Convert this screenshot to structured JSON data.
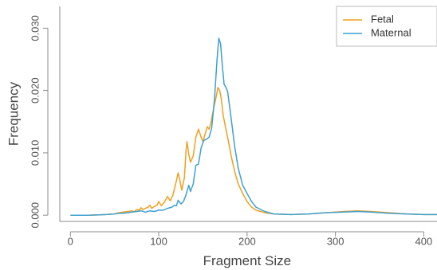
{
  "chart_data": {
    "type": "line",
    "title": "",
    "xlabel": "Fragment Size",
    "ylabel": "Frequency",
    "xlim": [
      -12,
      415
    ],
    "ylim": [
      -0.001,
      0.0335
    ],
    "xticks": [
      0,
      100,
      200,
      300,
      400
    ],
    "yticks": [
      0.0,
      0.01,
      0.02,
      0.03
    ],
    "xtick_labels": [
      "0",
      "100",
      "200",
      "300",
      "400"
    ],
    "ytick_labels": [
      "0.000",
      "0.010",
      "0.020",
      "0.030"
    ],
    "grid": false,
    "legend_position": "top-right",
    "series": [
      {
        "name": "Fetal",
        "color": "#f0a020",
        "points": [
          [
            0,
            0.0
          ],
          [
            20,
            0.0
          ],
          [
            40,
            0.0001
          ],
          [
            50,
            0.0002
          ],
          [
            55,
            0.0004
          ],
          [
            60,
            0.0005
          ],
          [
            65,
            0.0006
          ],
          [
            70,
            0.0007
          ],
          [
            72,
            0.0005
          ],
          [
            75,
            0.0009
          ],
          [
            78,
            0.0008
          ],
          [
            80,
            0.0012
          ],
          [
            82,
            0.0009
          ],
          [
            85,
            0.0011
          ],
          [
            88,
            0.0013
          ],
          [
            90,
            0.0016
          ],
          [
            92,
            0.0011
          ],
          [
            95,
            0.0014
          ],
          [
            98,
            0.0016
          ],
          [
            100,
            0.0022
          ],
          [
            103,
            0.0015
          ],
          [
            106,
            0.002
          ],
          [
            110,
            0.003
          ],
          [
            113,
            0.0023
          ],
          [
            116,
            0.0032
          ],
          [
            120,
            0.0055
          ],
          [
            122,
            0.0068
          ],
          [
            124,
            0.0055
          ],
          [
            126,
            0.004
          ],
          [
            129,
            0.006
          ],
          [
            131,
            0.0105
          ],
          [
            132,
            0.0118
          ],
          [
            134,
            0.0098
          ],
          [
            136,
            0.0085
          ],
          [
            139,
            0.0095
          ],
          [
            142,
            0.0125
          ],
          [
            145,
            0.0138
          ],
          [
            148,
            0.0125
          ],
          [
            150,
            0.0118
          ],
          [
            152,
            0.0128
          ],
          [
            155,
            0.0142
          ],
          [
            157,
            0.0138
          ],
          [
            159,
            0.0148
          ],
          [
            162,
            0.017
          ],
          [
            165,
            0.019
          ],
          [
            167,
            0.0205
          ],
          [
            169,
            0.02
          ],
          [
            171,
            0.0185
          ],
          [
            173,
            0.016
          ],
          [
            176,
            0.0138
          ],
          [
            178,
            0.0125
          ],
          [
            182,
            0.0095
          ],
          [
            186,
            0.007
          ],
          [
            190,
            0.005
          ],
          [
            195,
            0.0035
          ],
          [
            200,
            0.0022
          ],
          [
            205,
            0.0013
          ],
          [
            210,
            0.0008
          ],
          [
            220,
            0.0004
          ],
          [
            230,
            0.0002
          ],
          [
            250,
            0.0001
          ],
          [
            270,
            0.0002
          ],
          [
            290,
            0.0004
          ],
          [
            310,
            0.0006
          ],
          [
            325,
            0.0007
          ],
          [
            340,
            0.0006
          ],
          [
            360,
            0.0004
          ],
          [
            380,
            0.0002
          ],
          [
            400,
            0.0001
          ],
          [
            415,
            0.0001
          ]
        ]
      },
      {
        "name": "Maternal",
        "color": "#3fa0d0",
        "points": [
          [
            0,
            0.0
          ],
          [
            20,
            0.0
          ],
          [
            40,
            0.0001
          ],
          [
            50,
            0.0002
          ],
          [
            55,
            0.0003
          ],
          [
            60,
            0.0003
          ],
          [
            65,
            0.0004
          ],
          [
            70,
            0.0005
          ],
          [
            75,
            0.0006
          ],
          [
            80,
            0.0007
          ],
          [
            85,
            0.0005
          ],
          [
            90,
            0.0007
          ],
          [
            95,
            0.0006
          ],
          [
            100,
            0.0008
          ],
          [
            105,
            0.0008
          ],
          [
            110,
            0.0011
          ],
          [
            115,
            0.0013
          ],
          [
            118,
            0.0016
          ],
          [
            120,
            0.0015
          ],
          [
            122,
            0.0024
          ],
          [
            125,
            0.0018
          ],
          [
            128,
            0.0022
          ],
          [
            131,
            0.0033
          ],
          [
            134,
            0.0048
          ],
          [
            136,
            0.0038
          ],
          [
            139,
            0.005
          ],
          [
            142,
            0.008
          ],
          [
            145,
            0.0082
          ],
          [
            148,
            0.0108
          ],
          [
            151,
            0.012
          ],
          [
            154,
            0.0122
          ],
          [
            157,
            0.0125
          ],
          [
            160,
            0.014
          ],
          [
            163,
            0.0185
          ],
          [
            166,
            0.025
          ],
          [
            168,
            0.0284
          ],
          [
            170,
            0.0275
          ],
          [
            172,
            0.024
          ],
          [
            174,
            0.021
          ],
          [
            176,
            0.0205
          ],
          [
            178,
            0.0198
          ],
          [
            182,
            0.0155
          ],
          [
            186,
            0.011
          ],
          [
            190,
            0.0075
          ],
          [
            195,
            0.0048
          ],
          [
            200,
            0.0035
          ],
          [
            205,
            0.0022
          ],
          [
            210,
            0.0013
          ],
          [
            220,
            0.0006
          ],
          [
            230,
            0.0002
          ],
          [
            250,
            0.0001
          ],
          [
            270,
            0.0002
          ],
          [
            290,
            0.0004
          ],
          [
            310,
            0.0005
          ],
          [
            325,
            0.0006
          ],
          [
            340,
            0.0005
          ],
          [
            360,
            0.0003
          ],
          [
            380,
            0.0002
          ],
          [
            400,
            0.0001
          ],
          [
            415,
            0.0001
          ]
        ]
      }
    ]
  }
}
